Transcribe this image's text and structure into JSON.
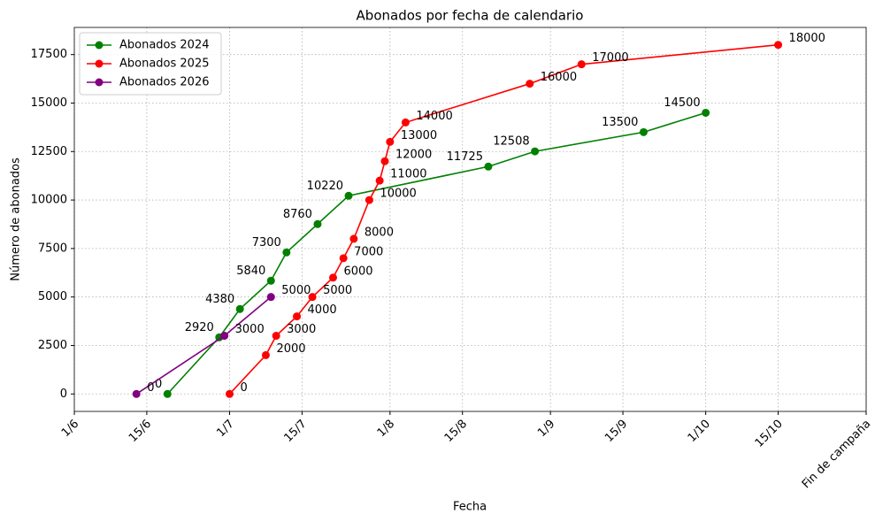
{
  "chart_data": {
    "type": "line",
    "title": "Abonados por fecha de calendario",
    "xlabel": "Fecha",
    "ylabel": "Número de abonados",
    "xlim": [
      "1/6",
      "1/11"
    ],
    "xticks": [
      "1/6",
      "15/6",
      "1/7",
      "15/7",
      "1/8",
      "15/8",
      "1/9",
      "15/9",
      "1/10",
      "15/10",
      {
        "value": "1/11",
        "label": "Fin de campaña"
      }
    ],
    "ylim": [
      -900,
      18900
    ],
    "yticks": [
      0,
      2500,
      5000,
      7500,
      10000,
      12500,
      15000,
      17500
    ],
    "grid": true,
    "legend": "upper left",
    "series": [
      {
        "name": "Abonados 2024",
        "color": "green",
        "x": [
          "19/6",
          "29/6",
          "3/7",
          "9/7",
          "12/7",
          "18/7",
          "24/7",
          "20/8",
          "29/8",
          "19/9",
          "1/10"
        ],
        "values": [
          0,
          2920,
          4380,
          5840,
          7300,
          8760,
          10220,
          11725,
          12508,
          13500,
          14500
        ]
      },
      {
        "name": "Abonados 2025",
        "color": "red",
        "x": [
          "1/7",
          "8/7",
          "10/7",
          "14/7",
          "17/7",
          "21/7",
          "23/7",
          "25/7",
          "28/7",
          "30/7",
          "31/7",
          "1/8",
          "4/8",
          "28/8",
          "7/9",
          "15/10"
        ],
        "values": [
          0,
          2000,
          3000,
          4000,
          5000,
          6000,
          7000,
          8000,
          10000,
          11000,
          12000,
          13000,
          14000,
          16000,
          17000,
          18000
        ]
      },
      {
        "name": "Abonados 2026",
        "color": "purple",
        "x": [
          "13/6",
          "30/6",
          "9/7"
        ],
        "values": [
          0,
          3000,
          5000
        ]
      }
    ]
  }
}
